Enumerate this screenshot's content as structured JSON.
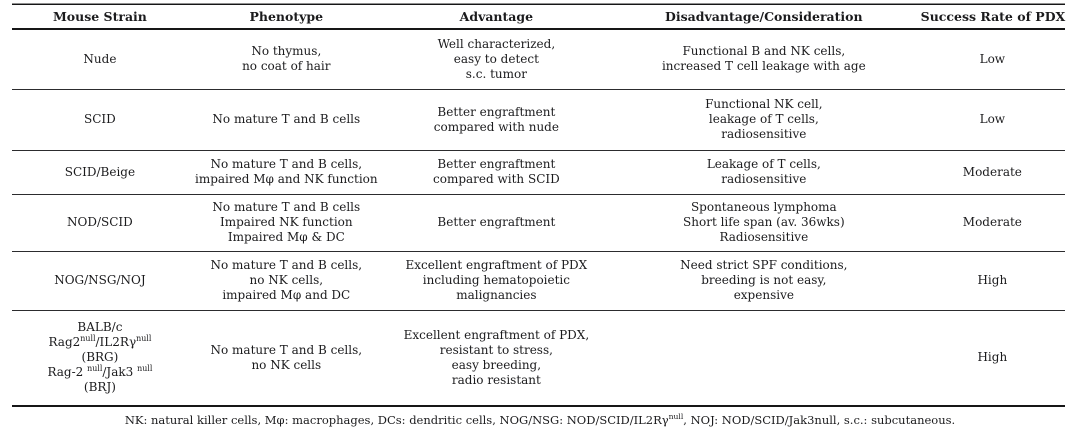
{
  "table": {
    "headers": [
      "Mouse Strain",
      "Phenotype",
      "Advantage",
      "Disadvantage/Consideration",
      "Success Rate of PDX"
    ],
    "column_keys": [
      "strain",
      "phenotype",
      "advantage",
      "disadvantage",
      "success_rate"
    ],
    "rows": [
      {
        "strain": [
          "Nude"
        ],
        "phenotype": [
          "No thymus,",
          "no coat of hair"
        ],
        "advantage": [
          "Well characterized,",
          "easy to detect",
          "s.c. tumor"
        ],
        "disadvantage": [
          "Functional B and NK cells,",
          "increased T cell leakage with age"
        ],
        "success_rate": [
          "Low"
        ]
      },
      {
        "strain": [
          "SCID"
        ],
        "phenotype": [
          "No mature T and B cells"
        ],
        "advantage": [
          "Better engraftment",
          "compared with nude"
        ],
        "disadvantage": [
          "Functional NK cell,",
          "leakage of T cells,",
          "radiosensitive"
        ],
        "success_rate": [
          "Low"
        ]
      },
      {
        "strain": [
          "SCID/Beige"
        ],
        "phenotype": [
          "No mature T and B cells,",
          "impaired Mφ and NK function"
        ],
        "advantage": [
          "Better engraftment",
          "compared with SCID"
        ],
        "disadvantage": [
          "Leakage of T cells,",
          "radiosensitive"
        ],
        "success_rate": [
          "Moderate"
        ]
      },
      {
        "strain": [
          "NOD/SCID"
        ],
        "phenotype": [
          "No mature T and B cells",
          "Impaired NK function",
          "Impaired Mφ & DC"
        ],
        "advantage": [
          "Better engraftment"
        ],
        "disadvantage": [
          "Spontaneous lymphoma",
          "Short life span (av. 36wks)",
          "Radiosensitive"
        ],
        "success_rate": [
          "Moderate"
        ]
      },
      {
        "strain": [
          "NOG/NSG/NOJ"
        ],
        "phenotype": [
          "No mature T and B cells,",
          "no NK cells,",
          "impaired Mφ and DC"
        ],
        "advantage": [
          "Excellent engraftment of PDX",
          "including hematopoietic",
          "malignancies"
        ],
        "disadvantage": [
          "Need strict SPF conditions,",
          "breeding is not easy,",
          "expensive"
        ],
        "success_rate": [
          "High"
        ]
      },
      {
        "strain": [
          "BALB/c",
          [
            {
              "t": "Rag2"
            },
            {
              "t": "null",
              "sup": true
            },
            {
              "t": "/IL2Rγ"
            },
            {
              "t": "null",
              "sup": true
            }
          ],
          "(BRG)",
          [
            {
              "t": "Rag-2 "
            },
            {
              "t": "null",
              "sup": true
            },
            {
              "t": "/Jak3 "
            },
            {
              "t": "null",
              "sup": true
            }
          ],
          "(BRJ)"
        ],
        "phenotype": [
          "No mature T and B cells,",
          "no NK cells"
        ],
        "advantage": [
          "Excellent engraftment of PDX,",
          "resistant to stress,",
          "easy breeding,",
          "radio resistant"
        ],
        "disadvantage": [],
        "success_rate": [
          "High"
        ]
      }
    ]
  },
  "footnote": {
    "segments": [
      {
        "t": "NK: natural killer cells, Mφ: macrophages, DCs: dendritic cells, NOG/NSG: NOD/SCID/IL2Rγ"
      },
      {
        "t": "null",
        "sup": true
      },
      {
        "t": ", NOJ: NOD/SCID/Jak3null, s.c.: subcutaneous."
      }
    ]
  }
}
